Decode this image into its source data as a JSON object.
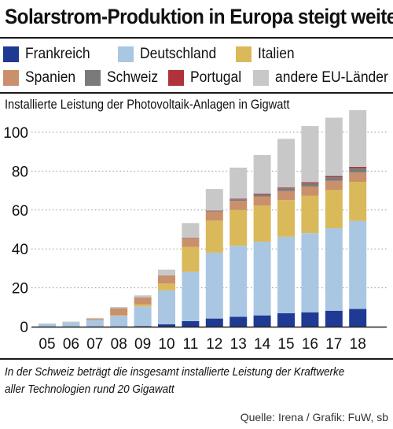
{
  "title": "Solarstrom-Produktion in Europa steigt weiter",
  "subtitle": "Installierte Leistung der Photovoltaik-Anlagen in Gigwatt",
  "note": "In der Schweiz beträgt  die insgesamt installierte Leistung der Kraftwerke\naller Technologien rund 20  Gigawatt",
  "source": "Quelle: Irena / Grafik: FuW, sb",
  "chart_data": {
    "type": "bar",
    "stacked": true,
    "title": "Solarstrom-Produktion in Europa steigt weiter",
    "ylabel": "Installierte Leistung der Photovoltaik-Anlagen in Gigwatt",
    "ylim": [
      0,
      110
    ],
    "yticks": [
      0,
      20,
      40,
      60,
      80,
      100
    ],
    "grid": "dotted horizontal",
    "legend_position": "top",
    "categories": [
      "05",
      "06",
      "07",
      "08",
      "09",
      "10",
      "11",
      "12",
      "13",
      "14",
      "15",
      "16",
      "17",
      "18"
    ],
    "series": [
      {
        "name": "Frankreich",
        "color": "#1f3a93",
        "values": [
          0.0,
          0.0,
          0.1,
          0.1,
          0.3,
          1.2,
          2.9,
          4.2,
          5.1,
          5.8,
          6.9,
          7.4,
          8.2,
          9.1
        ]
      },
      {
        "name": "Deutschland",
        "color": "#a9c7e3",
        "values": [
          1.4,
          2.2,
          3.2,
          5.4,
          10.1,
          17.5,
          25.3,
          33.9,
          36.5,
          37.9,
          39.3,
          40.7,
          42.4,
          45.3
        ]
      },
      {
        "name": "Italien",
        "color": "#d9b95a",
        "values": [
          0.0,
          0.0,
          0.1,
          0.4,
          1.1,
          3.5,
          12.8,
          16.5,
          18.4,
          18.6,
          18.9,
          19.3,
          19.7,
          20.1
        ]
      },
      {
        "name": "Spanien",
        "color": "#c9906b",
        "values": [
          0.05,
          0.1,
          0.6,
          3.4,
          3.4,
          3.9,
          4.3,
          4.6,
          4.7,
          4.7,
          4.7,
          4.7,
          4.7,
          4.8
        ]
      },
      {
        "name": "Schweiz",
        "color": "#7a7a7a",
        "values": [
          0.0,
          0.0,
          0.0,
          0.05,
          0.1,
          0.1,
          0.2,
          0.4,
          0.8,
          1.1,
          1.4,
          1.7,
          1.9,
          2.2
        ]
      },
      {
        "name": "Portugal",
        "color": "#b0323a",
        "values": [
          0.0,
          0.0,
          0.0,
          0.1,
          0.1,
          0.1,
          0.2,
          0.2,
          0.3,
          0.4,
          0.4,
          0.5,
          0.6,
          0.7
        ]
      },
      {
        "name": "andere EU-Länder",
        "color": "#c8c8c8",
        "values": [
          0.2,
          0.3,
          0.5,
          0.7,
          1.0,
          3.0,
          7.6,
          11.0,
          16.0,
          19.8,
          25.0,
          28.9,
          30.0,
          32.8
        ]
      }
    ]
  }
}
